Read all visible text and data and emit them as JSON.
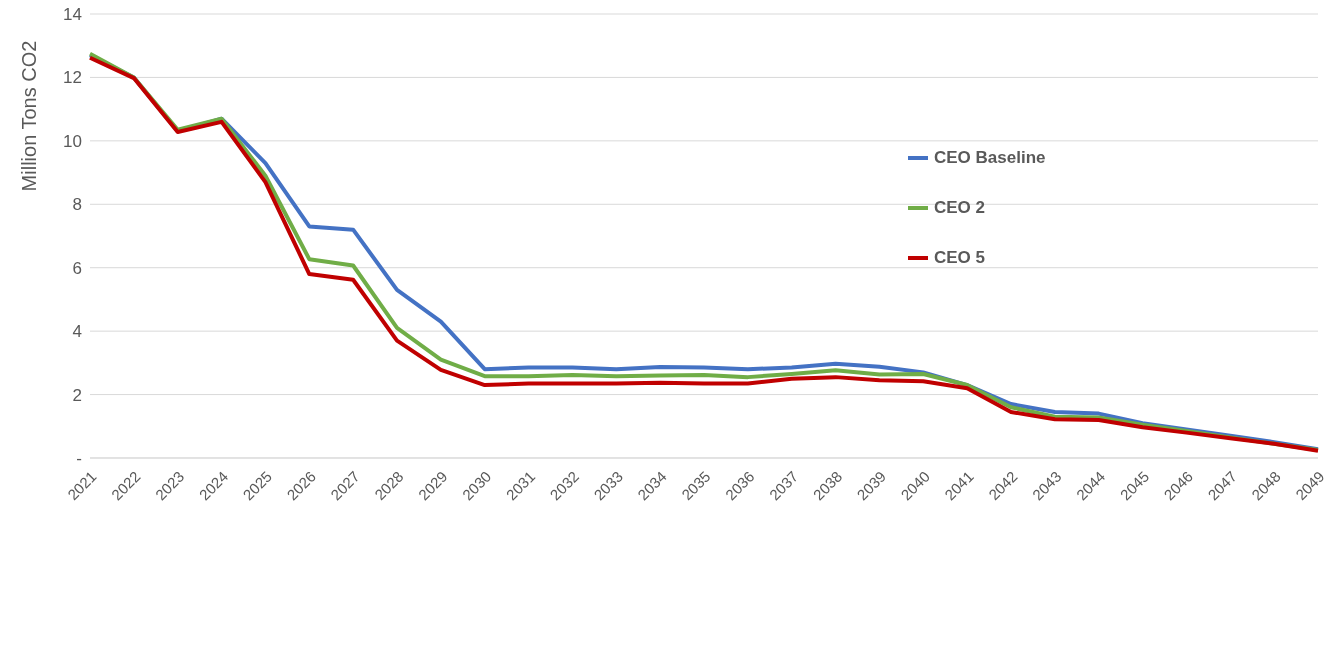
{
  "chart_data": {
    "type": "line",
    "ylabel": "Million Tons CO2",
    "categories": [
      "2021",
      "2022",
      "2023",
      "2024",
      "2025",
      "2026",
      "2027",
      "2028",
      "2029",
      "2030",
      "2031",
      "2032",
      "2033",
      "2034",
      "2035",
      "2036",
      "2037",
      "2038",
      "2039",
      "2040",
      "2041",
      "2042",
      "2043",
      "2044",
      "2045",
      "2046",
      "2047",
      "2048",
      "2049"
    ],
    "series": [
      {
        "name": "CEO Baseline",
        "color": "#4472c4",
        "values": [
          12.7,
          12.0,
          10.3,
          10.7,
          9.3,
          7.3,
          7.2,
          5.3,
          4.3,
          2.8,
          2.85,
          2.85,
          2.8,
          2.87,
          2.85,
          2.8,
          2.85,
          2.97,
          2.88,
          2.7,
          2.3,
          1.7,
          1.45,
          1.4,
          1.1,
          0.9,
          0.7,
          0.5,
          0.28
        ]
      },
      {
        "name": "CEO 2",
        "color": "#70ad47",
        "values": [
          12.75,
          12.0,
          10.35,
          10.7,
          8.9,
          6.27,
          6.07,
          4.1,
          3.1,
          2.58,
          2.58,
          2.62,
          2.58,
          2.6,
          2.62,
          2.55,
          2.65,
          2.77,
          2.63,
          2.65,
          2.3,
          1.6,
          1.3,
          1.28,
          1.05,
          0.85,
          0.65,
          0.45,
          0.25
        ]
      },
      {
        "name": "CEO 5",
        "color": "#c00000",
        "values": [
          12.62,
          11.98,
          10.28,
          10.6,
          8.7,
          5.8,
          5.62,
          3.7,
          2.78,
          2.3,
          2.35,
          2.35,
          2.35,
          2.37,
          2.35,
          2.35,
          2.5,
          2.55,
          2.45,
          2.42,
          2.2,
          1.45,
          1.22,
          1.2,
          0.97,
          0.8,
          0.62,
          0.45,
          0.23
        ]
      }
    ],
    "ylim": [
      0,
      14
    ],
    "yticks": [
      {
        "value": 0,
        "label": "-"
      },
      2,
      4,
      6,
      8,
      10,
      12,
      14
    ],
    "grid": "y",
    "legend": "right",
    "marker": "none",
    "line_style": "solid"
  }
}
